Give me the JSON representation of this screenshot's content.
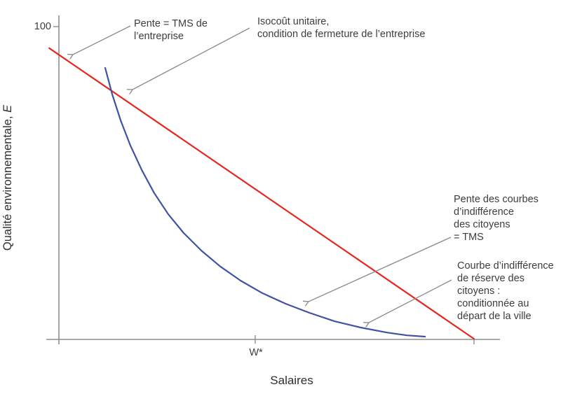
{
  "figure": {
    "xlabel": "Salaires",
    "ylabel_main": "Qualité environnementale, ",
    "ylabel_var": "E",
    "ytick_top": "100",
    "xtick_wstar": "W*"
  },
  "colors": {
    "isocost_red": "#e6261f",
    "indifference_blue": "#4053a3",
    "axis_gray": "#8e8e8e",
    "arrow_gray": "#8e8e8e",
    "text_dark": "#3b3b3b"
  },
  "chart_data": {
    "type": "line",
    "title": "",
    "xlabel": "Salaires",
    "ylabel": "Qualité environnementale, E",
    "x_axis": {
      "range_units": [
        0,
        100
      ],
      "ticks": [
        {
          "label": "W*",
          "x": 44.5
        },
        {
          "label": "",
          "x": 94.1
        }
      ],
      "grid": false
    },
    "y_axis": {
      "range": [
        0,
        100
      ],
      "ticks": [
        {
          "label": "100",
          "E": 100
        }
      ],
      "grid": false
    },
    "legend": "none",
    "series": [
      {
        "name": "Isocoût unitaire (droite de fermeture de l'entreprise)",
        "color": "#e6261f",
        "shape": "straight-line",
        "points": [
          [
            -2.2,
            93.1
          ],
          [
            94.1,
            0.2
          ]
        ]
      },
      {
        "name": "Courbe d'indifférence de réserve des citoyens",
        "color": "#4053a3",
        "shape": "convex-curve",
        "points": [
          [
            10.5,
            86.8
          ],
          [
            12.1,
            78.3
          ],
          [
            14.0,
            70.0
          ],
          [
            16.2,
            62.0
          ],
          [
            18.8,
            54.1
          ],
          [
            21.6,
            46.8
          ],
          [
            24.8,
            40.0
          ],
          [
            28.3,
            34.0
          ],
          [
            32.3,
            28.4
          ],
          [
            36.6,
            23.3
          ],
          [
            41.2,
            18.8
          ],
          [
            46.1,
            14.8
          ],
          [
            51.4,
            11.4
          ],
          [
            56.8,
            8.5
          ],
          [
            62.5,
            5.8
          ],
          [
            68.4,
            3.8
          ],
          [
            74.4,
            2.2
          ],
          [
            78.9,
            1.3
          ],
          [
            83.0,
            0.9
          ]
        ]
      }
    ],
    "annotations": [
      {
        "id": "slope-firm",
        "text": "Pente = TMS de\nl’entreprise",
        "points_to": "isocost line, upper left"
      },
      {
        "id": "isocost",
        "text": "Isocoût unitaire,\ncondition de fermeture de l’entreprise",
        "points_to": "isocost line"
      },
      {
        "id": "slope-citizens",
        "text": "Pente des courbes\nd’indifférence\ndes citoyens\n= TMS",
        "points_to": "indifference curve"
      },
      {
        "id": "reservation",
        "text": "Courbe d’indifférence\nde réserve des\ncitoyens :\nconditionnée au\ndépart de la ville",
        "points_to": "indifference curve, lower end"
      }
    ]
  }
}
